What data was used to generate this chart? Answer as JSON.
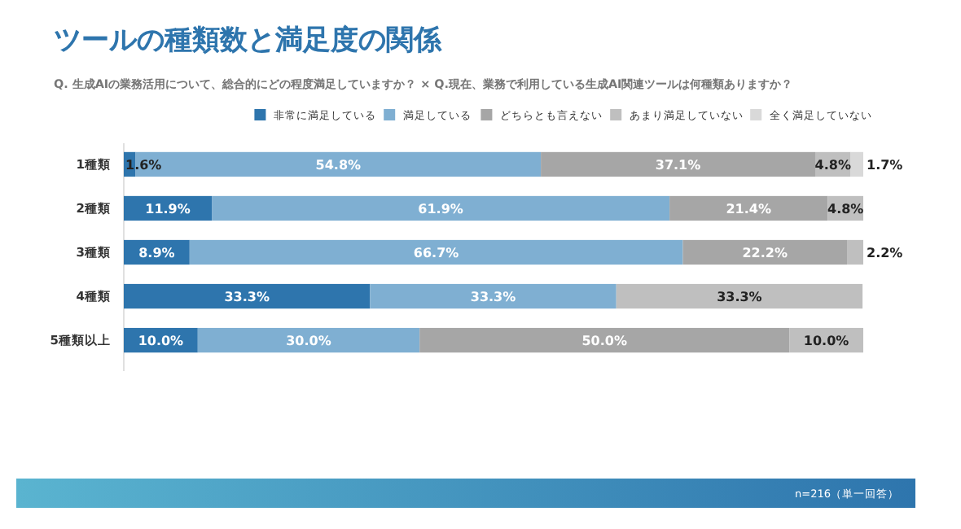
{
  "chart_data": {
    "type": "bar",
    "orientation": "horizontal",
    "stacked": true,
    "title": "ツールの種類数と満足度の関係",
    "subtitle": "Q. 生成AIの業務活用について、総合的にどの程度満足していますか？ × Q.現在、業務で利用している生成AI関連ツールは何種類ありますか？",
    "categories": [
      "1種類",
      "2種類",
      "3種類",
      "4種類",
      "5種類以上"
    ],
    "xlim": [
      0,
      100
    ],
    "tick_labels": "y",
    "legend": "top right",
    "annotations": [
      "n=216（単一回答）"
    ],
    "series": [
      {
        "name": "非常に満足している",
        "color": "#2e75ad",
        "values": [
          1.6,
          11.9,
          8.9,
          33.3,
          10.0
        ],
        "value_labels": [
          "1.6%",
          "11.9%",
          "8.9%",
          "33.3%",
          "10.0%"
        ]
      },
      {
        "name": "満足している",
        "color": "#7fafd2",
        "values": [
          54.8,
          61.9,
          66.7,
          33.3,
          30.0
        ],
        "value_labels": [
          "54.8%",
          "61.9%",
          "66.7%",
          "33.3%",
          "30.0%"
        ]
      },
      {
        "name": "どちらとも言えない",
        "color": "#a6a6a6",
        "values": [
          37.1,
          21.4,
          22.2,
          null,
          50.0
        ],
        "value_labels": [
          "37.1%",
          "21.4%",
          "22.2%",
          null,
          "50.0%"
        ]
      },
      {
        "name": "あまり満足していない",
        "color": "#bfbfbf",
        "values": [
          4.8,
          4.8,
          2.2,
          33.3,
          10.0
        ],
        "value_labels": [
          "4.8%",
          "4.8%",
          "2.2%",
          "33.3%",
          "10.0%"
        ]
      },
      {
        "name": "全く満足していない",
        "color": "#d9d9d9",
        "values": [
          1.7,
          null,
          null,
          null,
          null
        ],
        "value_labels": [
          "1.7%",
          null,
          null,
          null,
          null
        ]
      }
    ]
  }
}
